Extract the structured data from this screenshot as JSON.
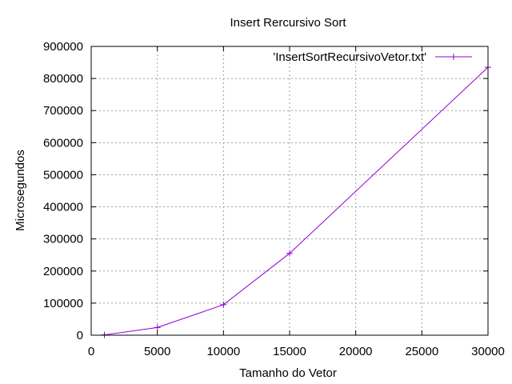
{
  "chart_data": {
    "type": "line",
    "title": "Insert Rercursivo Sort",
    "xlabel": "Tamanho do Vetor",
    "ylabel": "Microsegundos",
    "xlim": [
      0,
      30000
    ],
    "ylim": [
      0,
      900000
    ],
    "xticks": [
      0,
      5000,
      10000,
      15000,
      20000,
      25000,
      30000
    ],
    "yticks": [
      0,
      100000,
      200000,
      300000,
      400000,
      500000,
      600000,
      700000,
      800000,
      900000
    ],
    "grid": true,
    "legend_position": "top-right",
    "series": [
      {
        "name": "'InsertSortRecursivoVetor.txt'",
        "color": "#9400d3",
        "marker": "plus",
        "x": [
          1000,
          5000,
          10000,
          15000,
          30000
        ],
        "y": [
          1000,
          24000,
          95000,
          255000,
          835000
        ]
      }
    ]
  }
}
